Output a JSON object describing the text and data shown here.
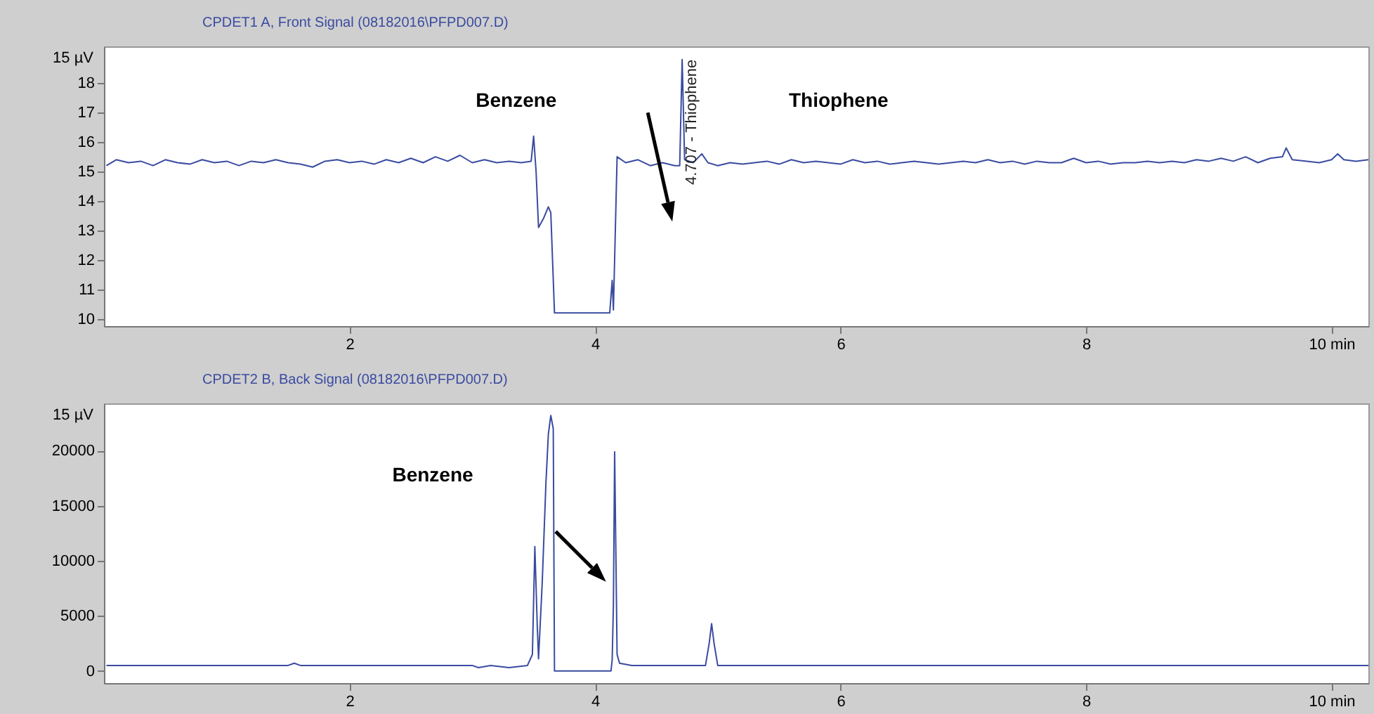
{
  "chart_data": [
    {
      "type": "line",
      "title": "CPDET1 A, Front Signal (08182016\\PFPD007.D)",
      "xlim": [
        0,
        10.3
      ],
      "xticks": [
        2,
        4,
        6,
        8,
        {
          "value": 10,
          "label": "10 min"
        }
      ],
      "ylim": [
        9.75,
        19.25
      ],
      "yticks": [
        10,
        11,
        12,
        13,
        14,
        15,
        16,
        17,
        18
      ],
      "ylabel": "15 µV",
      "grid": false,
      "annotations": [
        "Benzene",
        {
          "text": "4.707 - Thiophene",
          "x": 4.707,
          "y": 18.8
        },
        "Thiophene"
      ],
      "series": [
        {
          "color": "#3a4ba0",
          "x": [
            0.02,
            0.1,
            0.2,
            0.3,
            0.4,
            0.5,
            0.6,
            0.7,
            0.8,
            0.9,
            1.0,
            1.1,
            1.2,
            1.3,
            1.4,
            1.5,
            1.6,
            1.7,
            1.8,
            1.9,
            2.0,
            2.1,
            2.2,
            2.3,
            2.4,
            2.5,
            2.6,
            2.7,
            2.8,
            2.9,
            3.0,
            3.1,
            3.2,
            3.3,
            3.4,
            3.48,
            3.5,
            3.52,
            3.54,
            3.58,
            3.62,
            3.64,
            3.67,
            3.9,
            4.12,
            4.14,
            4.15,
            4.18,
            4.25,
            4.35,
            4.45,
            4.55,
            4.65,
            4.69,
            4.71,
            4.73,
            4.8,
            4.87,
            4.92,
            5.0,
            5.1,
            5.2,
            5.3,
            5.4,
            5.5,
            5.6,
            5.7,
            5.8,
            5.9,
            6.0,
            6.1,
            6.2,
            6.3,
            6.4,
            6.5,
            6.6,
            6.7,
            6.8,
            6.9,
            7.0,
            7.1,
            7.2,
            7.3,
            7.4,
            7.5,
            7.6,
            7.7,
            7.8,
            7.9,
            8.0,
            8.1,
            8.2,
            8.3,
            8.4,
            8.5,
            8.6,
            8.7,
            8.8,
            8.9,
            9.0,
            9.1,
            9.2,
            9.3,
            9.4,
            9.5,
            9.6,
            9.63,
            9.68,
            9.8,
            9.9,
            10.0,
            10.05,
            10.1,
            10.2,
            10.3
          ],
          "values": [
            15.2,
            15.4,
            15.3,
            15.35,
            15.2,
            15.4,
            15.3,
            15.25,
            15.4,
            15.3,
            15.35,
            15.2,
            15.35,
            15.3,
            15.4,
            15.3,
            15.25,
            15.15,
            15.35,
            15.4,
            15.3,
            15.35,
            15.25,
            15.4,
            15.3,
            15.45,
            15.3,
            15.5,
            15.35,
            15.55,
            15.3,
            15.4,
            15.3,
            15.35,
            15.3,
            15.35,
            16.2,
            15.0,
            13.1,
            13.4,
            13.8,
            13.6,
            10.2,
            10.2,
            10.2,
            11.3,
            10.3,
            15.5,
            15.3,
            15.4,
            15.2,
            15.3,
            15.2,
            15.2,
            18.8,
            15.4,
            15.3,
            15.6,
            15.3,
            15.2,
            15.3,
            15.25,
            15.3,
            15.35,
            15.25,
            15.4,
            15.3,
            15.35,
            15.3,
            15.25,
            15.4,
            15.3,
            15.35,
            15.25,
            15.3,
            15.35,
            15.3,
            15.25,
            15.3,
            15.35,
            15.3,
            15.4,
            15.3,
            15.35,
            15.25,
            15.35,
            15.3,
            15.3,
            15.45,
            15.3,
            15.35,
            15.25,
            15.3,
            15.3,
            15.35,
            15.3,
            15.35,
            15.3,
            15.4,
            15.35,
            15.45,
            15.35,
            15.5,
            15.3,
            15.45,
            15.5,
            15.8,
            15.4,
            15.35,
            15.3,
            15.4,
            15.6,
            15.4,
            15.35,
            15.4
          ]
        }
      ]
    },
    {
      "type": "line",
      "title": "CPDET2 B, Back Signal (08182016\\PFPD007.D)",
      "xlim": [
        0,
        10.3
      ],
      "xticks": [
        2,
        4,
        6,
        8,
        {
          "value": 10,
          "label": "10 min"
        }
      ],
      "ylim": [
        -1100,
        24300
      ],
      "yticks": [
        0,
        5000,
        10000,
        15000,
        20000
      ],
      "ylabel": "15 µV",
      "grid": false,
      "annotations": [
        "Benzene"
      ],
      "series": [
        {
          "color": "#3a4ba0",
          "x": [
            0.02,
            1.0,
            1.5,
            1.55,
            1.6,
            2.0,
            3.0,
            3.05,
            3.15,
            3.3,
            3.45,
            3.49,
            3.51,
            3.53,
            3.54,
            3.57,
            3.6,
            3.62,
            3.64,
            3.66,
            3.67,
            4.13,
            4.14,
            4.15,
            4.16,
            4.18,
            4.2,
            4.3,
            4.9,
            4.93,
            4.95,
            4.97,
            5.0,
            6.0,
            7.0,
            8.0,
            9.0,
            10.3
          ],
          "values": [
            500,
            500,
            500,
            700,
            500,
            500,
            500,
            300,
            500,
            300,
            500,
            1500,
            11300,
            4000,
            1100,
            8000,
            17000,
            21500,
            23200,
            22000,
            0,
            0,
            1000,
            6000,
            19900,
            1500,
            700,
            500,
            500,
            2500,
            4300,
            2500,
            500,
            500,
            500,
            500,
            500,
            500
          ]
        }
      ]
    }
  ]
}
